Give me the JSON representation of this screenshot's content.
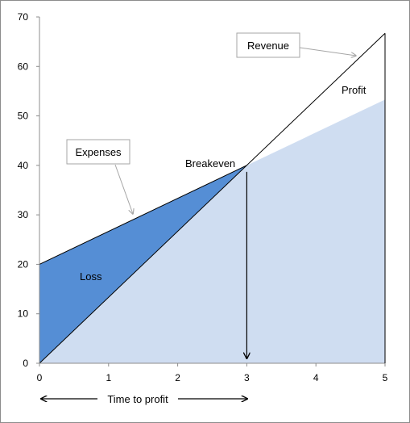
{
  "chart_data": {
    "type": "area",
    "x": [
      0,
      1,
      2,
      3,
      4,
      5
    ],
    "xlim": [
      0,
      5
    ],
    "ylim": [
      0,
      70
    ],
    "x_ticks": [
      "0",
      "1",
      "2",
      "3",
      "4",
      "5"
    ],
    "y_ticks": [
      "0",
      "10",
      "20",
      "30",
      "40",
      "50",
      "60",
      "70"
    ],
    "grid": false,
    "series": [
      {
        "name": "Revenue",
        "points": [
          [
            0,
            0
          ],
          [
            5,
            66.7
          ]
        ]
      },
      {
        "name": "Expenses",
        "points": [
          [
            0,
            20
          ],
          [
            5,
            53.3
          ]
        ]
      }
    ],
    "breakeven": {
      "x": 3,
      "y": 40
    },
    "labels": {
      "revenue": "Revenue",
      "expenses": "Expenses",
      "profit": "Profit",
      "breakeven": "Breakeven",
      "loss": "Loss",
      "time_to_profit": "Time to profit"
    },
    "colors": {
      "light_fill": "#cfddf1",
      "loss_fill": "#558ed5",
      "line": "#000000",
      "callout_arrow": "#a6a6a6",
      "callout_border": "#a6a6a6"
    }
  }
}
